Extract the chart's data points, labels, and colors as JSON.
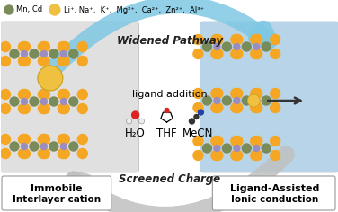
{
  "legend_text1": "Mn, Cd",
  "legend_text2": "Li⁺, Na⁺,  K⁺,  Mg²⁺,  Ca²⁺,  Zn²⁺,  Al³⁺",
  "arrow_top_text": "Widened Pathway",
  "arrow_bottom_text": "Screened Charge",
  "center_text1": "ligand addition",
  "center_text2_h2o": "H₂O",
  "center_text2_thf": "THF",
  "center_text2_mecn": "MeCN",
  "label_left1": "Immobile",
  "label_left2": "Interlayer cation",
  "label_right1": "Ligand-Assisted",
  "label_right2": "Ionic conduction",
  "color_mn": "#7A8B5A",
  "color_s": "#F5A623",
  "color_p": "#9B8DC0",
  "color_li_big": "#F0C040",
  "color_bg_left": "#E0E0E0",
  "color_bg_right": "#B8D4E8",
  "color_arrow_top": "#7EC8E3",
  "color_arrow_bottom": "#C0C0C0",
  "bg_color": "#FFFFFF"
}
